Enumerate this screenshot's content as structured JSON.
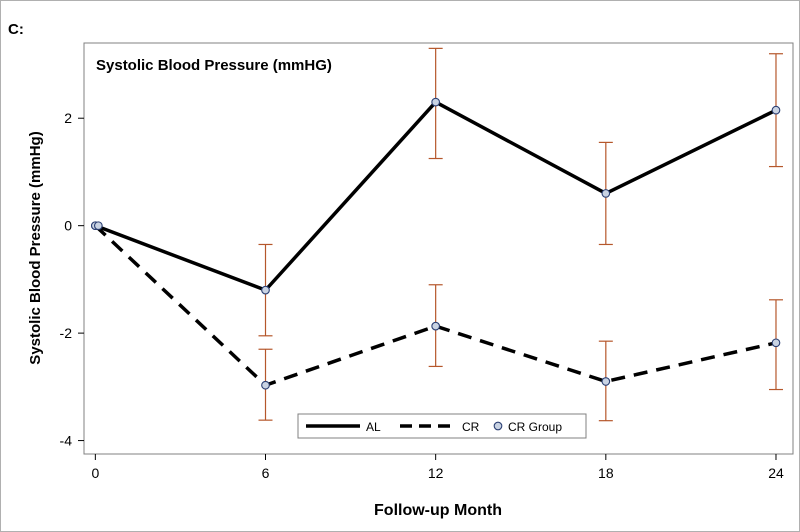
{
  "panel_label": "C:",
  "chart_data": {
    "type": "line",
    "title": "Systolic Blood Pressure (mmHG)",
    "xlabel": "Follow-up Month",
    "ylabel": "Systolic Blood Pressure (mmHg)",
    "x": [
      0,
      6,
      12,
      18,
      24
    ],
    "x_ticks": [
      "0",
      "6",
      "12",
      "18",
      "24"
    ],
    "y_ticks": [
      "-4",
      "-2",
      "0",
      "2"
    ],
    "y_tick_values": [
      -4,
      -2,
      0,
      2
    ],
    "xlim": [
      -0.4,
      24.6
    ],
    "ylim": [
      -4.25,
      3.4
    ],
    "series": [
      {
        "name": "AL",
        "style": "solid",
        "values": [
          0,
          -1.2,
          2.3,
          0.6,
          2.15
        ],
        "error_low": [
          null,
          -2.05,
          1.25,
          -0.35,
          1.1
        ],
        "error_high": [
          null,
          -0.35,
          3.3,
          1.55,
          3.2
        ]
      },
      {
        "name": "CR",
        "style": "dashed",
        "values": [
          0,
          -2.97,
          -1.87,
          -2.9,
          -2.18
        ],
        "error_low": [
          null,
          -3.62,
          -2.62,
          -3.63,
          -3.05
        ],
        "error_high": [
          null,
          -2.3,
          -1.1,
          -2.15,
          -1.38
        ]
      }
    ],
    "legend": {
      "position": "bottom-center",
      "entries": [
        {
          "label": "AL",
          "style": "solid"
        },
        {
          "label": "CR",
          "style": "dashed"
        },
        {
          "label": "CR Group",
          "style": "marker"
        }
      ]
    },
    "colors": {
      "line": "#000000",
      "error_bar": "#b5572b",
      "marker_fill": "#c9d3e3",
      "marker_stroke": "#2b3f73",
      "frame": "#808080",
      "outer_border": "#b0b0b0"
    }
  }
}
